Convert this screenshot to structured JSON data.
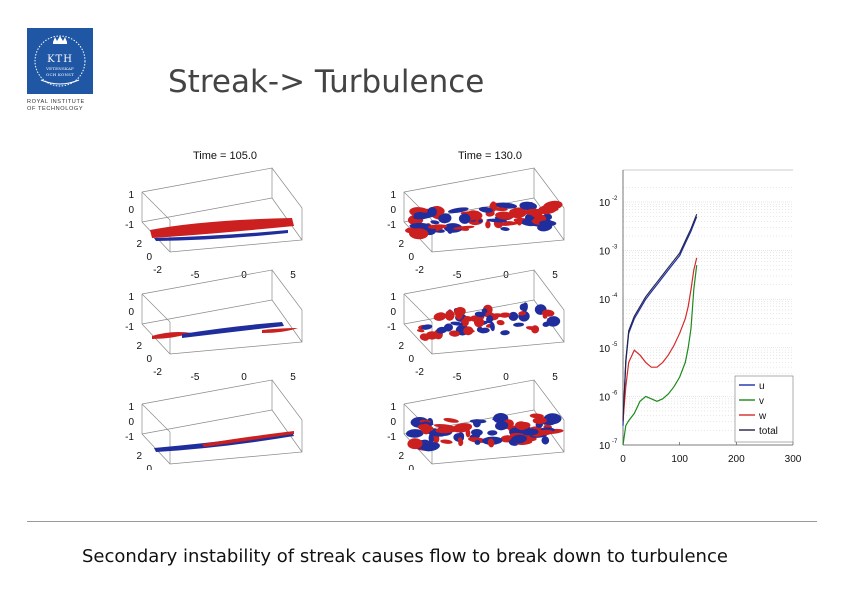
{
  "header": {
    "logo_text": "KTH",
    "logo_sub1": "VETENSKAP",
    "logo_sub2": "OCH KONST",
    "institute_line1": "ROYAL INSTITUTE",
    "institute_line2": "OF TECHNOLOGY",
    "title": "Streak-> Turbulence"
  },
  "panels": {
    "columns": [
      {
        "title": "Time = 105.0"
      },
      {
        "title": "Time = 130.0"
      }
    ],
    "z_ticks": [
      "1",
      "0",
      "-1"
    ],
    "y_ticks": [
      "2",
      "0",
      "-2"
    ],
    "x_ticks": [
      "-5",
      "0",
      "5"
    ]
  },
  "colors": {
    "u": "#1f2ea8",
    "v": "#1c8a1c",
    "w": "#d42a2a",
    "total": "#222244",
    "blob_red": "#cc1f1f",
    "blob_blue": "#1f2e9c"
  },
  "chart_data": {
    "type": "line",
    "title": "",
    "xlabel": "",
    "ylabel": "",
    "xlim": [
      0,
      300
    ],
    "x_ticks": [
      "0",
      "100",
      "200",
      "300"
    ],
    "ylim_log10": [
      -7,
      -1.6
    ],
    "y_tick_bases": [
      "10",
      "10",
      "10",
      "10",
      "10",
      "10"
    ],
    "y_tick_exps": [
      "-2",
      "-3",
      "-4",
      "-5",
      "-6",
      "-7"
    ],
    "legend_position": "bottom-right",
    "series": [
      {
        "name": "u",
        "x": [
          0,
          5,
          10,
          20,
          30,
          40,
          50,
          60,
          70,
          80,
          90,
          100,
          110,
          120,
          130
        ],
        "log10y": [
          -6.6,
          -5.3,
          -4.7,
          -4.4,
          -4.2,
          -4.0,
          -3.85,
          -3.7,
          -3.55,
          -3.4,
          -3.25,
          -3.1,
          -2.85,
          -2.6,
          -2.3
        ]
      },
      {
        "name": "v",
        "x": [
          0,
          5,
          10,
          20,
          30,
          40,
          50,
          60,
          70,
          80,
          90,
          100,
          110,
          115,
          120,
          125,
          130
        ],
        "log10y": [
          -7.0,
          -6.6,
          -6.5,
          -6.35,
          -6.1,
          -6.0,
          -6.05,
          -6.1,
          -6.05,
          -5.95,
          -5.8,
          -5.6,
          -5.3,
          -5.0,
          -4.6,
          -3.8,
          -3.3
        ]
      },
      {
        "name": "w",
        "x": [
          0,
          5,
          10,
          20,
          30,
          40,
          50,
          60,
          70,
          80,
          90,
          100,
          110,
          115,
          120,
          125,
          130
        ],
        "log10y": [
          -6.5,
          -5.8,
          -5.3,
          -5.05,
          -5.15,
          -5.3,
          -5.4,
          -5.4,
          -5.3,
          -5.15,
          -4.95,
          -4.7,
          -4.4,
          -4.15,
          -3.8,
          -3.4,
          -3.15
        ]
      },
      {
        "name": "total",
        "x": [
          0,
          5,
          10,
          20,
          30,
          40,
          50,
          60,
          70,
          80,
          90,
          100,
          110,
          120,
          130
        ],
        "log10y": [
          -6.5,
          -5.25,
          -4.65,
          -4.35,
          -4.15,
          -3.95,
          -3.8,
          -3.65,
          -3.5,
          -3.35,
          -3.2,
          -3.05,
          -2.8,
          -2.55,
          -2.25
        ]
      }
    ]
  },
  "caption": "Secondary instability of streak causes flow to break down to turbulence"
}
